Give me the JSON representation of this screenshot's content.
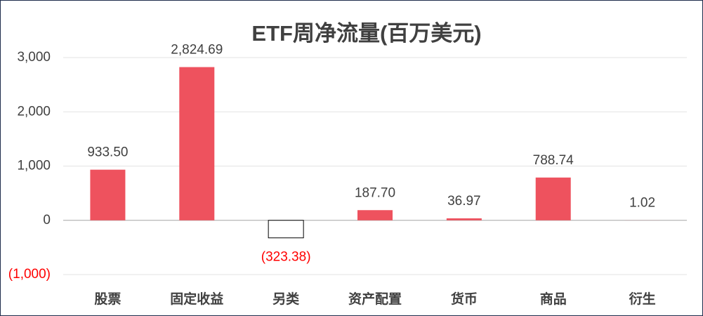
{
  "chart_data": {
    "type": "bar",
    "title": "ETF周净流量(百万美元)",
    "categories": [
      "股票",
      "固定收益",
      "另类",
      "资产配置",
      "货币",
      "商品",
      "衍生"
    ],
    "values": [
      933.5,
      2824.69,
      -323.38,
      187.7,
      36.97,
      788.74,
      1.02
    ],
    "value_labels": [
      "933.50",
      "2,824.69",
      "(323.38)",
      "187.70",
      "36.97",
      "788.74",
      "1.02"
    ],
    "color": "#ee525e",
    "negative_color": "#ffffff",
    "negative_stroke": "#000000",
    "negative_label_color": "#ff0000",
    "ylim": [
      -1000,
      3000
    ],
    "yticks": [
      {
        "value": 3000,
        "label": "3,000"
      },
      {
        "value": 2000,
        "label": "2,000"
      },
      {
        "value": 1000,
        "label": "1,000"
      },
      0,
      {
        "value": -1000,
        "label": "(1,000)"
      }
    ],
    "grid": true
  }
}
